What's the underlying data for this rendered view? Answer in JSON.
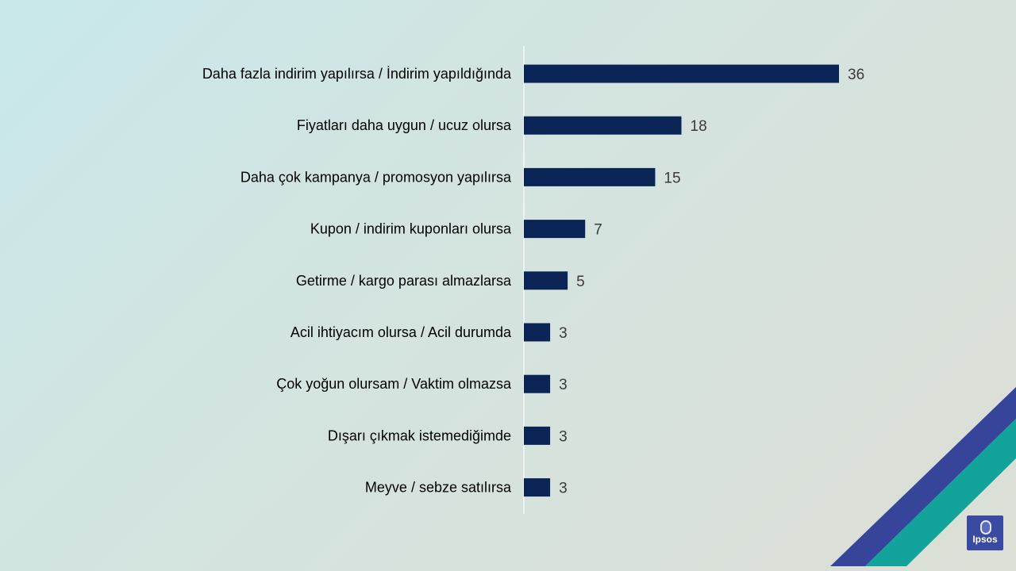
{
  "chart_data": {
    "type": "bar",
    "orientation": "horizontal",
    "categories": [
      "Daha fazla indirim yapılırsa / İndirim yapıldığında",
      "Fiyatları daha uygun / ucuz olursa",
      "Daha çok kampanya / promosyon yapılırsa",
      "Kupon / indirim kuponları olursa",
      "Getirme / kargo parası almazlarsa",
      "Acil ihtiyacım olursa / Acil durumda",
      "Çok yoğun olursam / Vaktim olmazsa",
      "Dışarı çıkmak istemediğimde",
      "Meyve / sebze satılırsa"
    ],
    "values": [
      36,
      18,
      15,
      7,
      5,
      3,
      3,
      3,
      3
    ],
    "title": "",
    "xlabel": "",
    "ylabel": "",
    "xlim": [
      0,
      36
    ],
    "grid": false,
    "legend": "none",
    "bar_color": "#0a2455"
  },
  "colors": {
    "decor_band_blue": "#36449a",
    "decor_band_teal": "#12a39a",
    "axis_line": "#ffffff"
  },
  "logo": {
    "text": "Ipsos"
  }
}
